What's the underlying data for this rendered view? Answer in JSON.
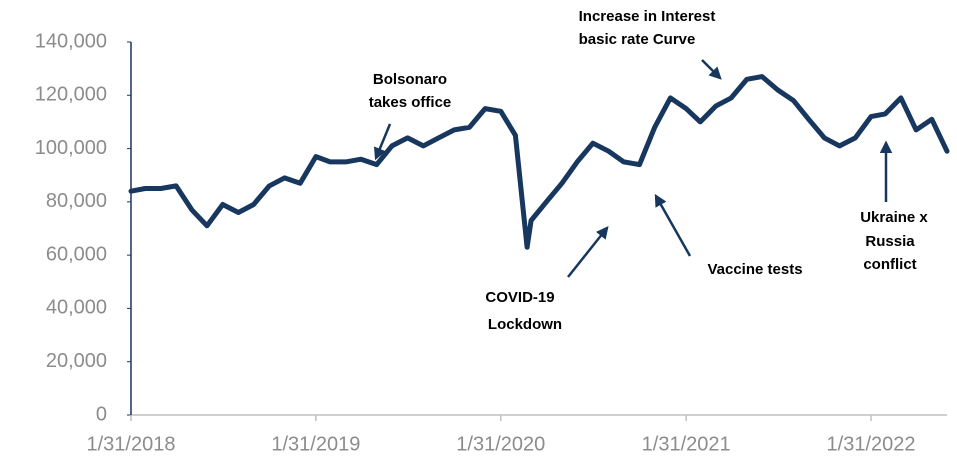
{
  "chart_data": {
    "type": "line",
    "color": "#17375e",
    "x": [
      "1/31/2018",
      "2/28/2018",
      "3/31/2018",
      "4/30/2018",
      "5/31/2018",
      "6/30/2018",
      "7/31/2018",
      "8/31/2018",
      "9/30/2018",
      "10/31/2018",
      "11/30/2018",
      "12/31/2018",
      "1/31/2019",
      "2/28/2019",
      "3/31/2019",
      "4/30/2019",
      "5/31/2019",
      "6/30/2019",
      "7/31/2019",
      "8/31/2019",
      "9/30/2019",
      "10/31/2019",
      "11/30/2019",
      "12/31/2019",
      "1/31/2020",
      "2/29/2020",
      "3/23/2020",
      "3/31/2020",
      "4/30/2020",
      "5/31/2020",
      "6/30/2020",
      "7/31/2020",
      "8/31/2020",
      "9/30/2020",
      "10/31/2020",
      "11/30/2020",
      "12/31/2020",
      "1/31/2021",
      "2/28/2021",
      "3/31/2021",
      "4/30/2021",
      "5/31/2021",
      "6/30/2021",
      "7/31/2021",
      "8/31/2021",
      "9/30/2021",
      "10/31/2021",
      "11/30/2021",
      "12/31/2021",
      "1/31/2022",
      "2/28/2022",
      "3/31/2022",
      "4/30/2022",
      "5/31/2022",
      "6/30/2022"
    ],
    "values": [
      84000,
      85000,
      85000,
      86000,
      77000,
      71000,
      79000,
      76000,
      79000,
      86000,
      89000,
      87000,
      97000,
      95000,
      95000,
      96000,
      94000,
      101000,
      104000,
      101000,
      104000,
      107000,
      108000,
      115000,
      114000,
      105000,
      63000,
      73000,
      80000,
      87000,
      95000,
      102000,
      99000,
      95000,
      94000,
      108000,
      119000,
      115000,
      110000,
      116000,
      119000,
      126000,
      127000,
      122000,
      118000,
      111000,
      104000,
      101000,
      104000,
      112000,
      113000,
      119000,
      107000,
      111000,
      99000
    ],
    "xlim": [
      "1/31/2018",
      "6/30/2022"
    ],
    "xticks": [
      "1/31/2018",
      "1/31/2019",
      "1/31/2020",
      "1/31/2021",
      "1/31/2022"
    ],
    "ylim": [
      0,
      140000
    ],
    "yticks": [
      0,
      {
        "value": 20000,
        "label": "20,000"
      },
      {
        "value": 40000,
        "label": "40,000"
      },
      {
        "value": 60000,
        "label": "60,000"
      },
      {
        "value": 80000,
        "label": "80,000"
      },
      {
        "value": 100000,
        "label": "100,000"
      },
      {
        "value": 120000,
        "label": "120,000"
      },
      {
        "value": 140000,
        "label": "140,000"
      }
    ],
    "annotations": [
      {
        "lines": [
          "Bolsonaro",
          "takes office"
        ]
      },
      {
        "lines": [
          "Increase in Interest",
          "basic rate Curve"
        ]
      },
      {
        "lines": [
          "COVID-19",
          "Lockdown"
        ]
      },
      {
        "lines": [
          "Vaccine tests"
        ]
      },
      {
        "lines": [
          "Ukraine x",
          "Russia",
          "conflict"
        ]
      }
    ]
  }
}
